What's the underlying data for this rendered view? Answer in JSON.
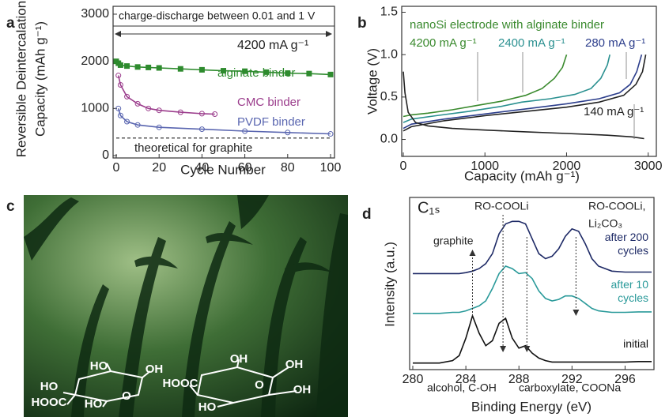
{
  "chart_data": [
    {
      "panel_label": "a",
      "type": "line",
      "x_label": "Cycle Number",
      "y_label": [
        "Reversible Deintercalation",
        "Capacity (mAh g⁻¹)"
      ],
      "annotations": [
        "charge-discharge between 0.01 and 1 V",
        "4200 mA g⁻¹"
      ],
      "xlim": [
        0,
        100
      ],
      "xticks": [
        0,
        20,
        40,
        60,
        80,
        100
      ],
      "ylim": [
        0,
        3100
      ],
      "yticks": [
        0,
        1000,
        2000,
        3000
      ],
      "series": [
        {
          "name": "alginate binder",
          "color": "#2e8b2e",
          "marker": "square",
          "marker_filled": true,
          "x": [
            0,
            1,
            2,
            5,
            10,
            15,
            20,
            30,
            40,
            50,
            60,
            70,
            80,
            90,
            100
          ],
          "values": [
            2000,
            1960,
            1920,
            1900,
            1880,
            1870,
            1860,
            1840,
            1820,
            1800,
            1790,
            1770,
            1750,
            1740,
            1720
          ]
        },
        {
          "name": "CMC binder",
          "color": "#9b3d8c",
          "marker": "circle",
          "marker_filled": false,
          "x": [
            1,
            2,
            5,
            10,
            15,
            20,
            30,
            40,
            46
          ],
          "values": [
            1700,
            1500,
            1250,
            1100,
            1000,
            960,
            920,
            890,
            880
          ]
        },
        {
          "name": "PVDF binder",
          "color": "#5a66b0",
          "marker": "circle",
          "marker_filled": false,
          "x": [
            1,
            2,
            5,
            10,
            20,
            40,
            60,
            80,
            100
          ],
          "values": [
            1000,
            850,
            720,
            650,
            600,
            560,
            520,
            490,
            460
          ]
        },
        {
          "name": "theoretical for graphite",
          "color": "#222222",
          "line_style": "dashed",
          "x": [
            0,
            100
          ],
          "values": [
            372,
            372
          ]
        }
      ]
    },
    {
      "panel_label": "b",
      "type": "line",
      "title": "nanoSi electrode with alginate binder",
      "x_label": "Capacity (mAh g⁻¹)",
      "y_label": [
        "Voltage (V)"
      ],
      "xlim": [
        0,
        3100
      ],
      "xticks": [
        0,
        1000,
        2000,
        3000
      ],
      "ylim": [
        -0.2,
        1.57
      ],
      "yticks": [
        {
          "value": 0,
          "label": "0.0"
        },
        0.5,
        {
          "value": 1,
          "label": "1.0"
        },
        1.5
      ],
      "series": [
        {
          "name": "4200 mA g⁻¹",
          "color": "#3a8a2e",
          "x": [
            0,
            100,
            300,
            600,
            900,
            1200,
            1500,
            1700,
            1850,
            1950,
            2000
          ],
          "values": [
            0.27,
            0.29,
            0.31,
            0.35,
            0.4,
            0.45,
            0.52,
            0.6,
            0.72,
            0.85,
            1.0
          ]
        },
        {
          "name": "2400 mA g⁻¹",
          "color": "#2a9090",
          "x": [
            0,
            100,
            400,
            800,
            1200,
            1450,
            1800,
            2100,
            2300,
            2420,
            2500,
            2530
          ],
          "values": [
            0.2,
            0.24,
            0.28,
            0.33,
            0.39,
            0.44,
            0.48,
            0.53,
            0.6,
            0.72,
            0.88,
            1.0
          ]
        },
        {
          "name": "280 mA g⁻¹",
          "color": "#2c3e8c",
          "x": [
            0,
            100,
            500,
            1000,
            1500,
            2000,
            2400,
            2650,
            2780,
            2860,
            2920
          ],
          "values": [
            0.13,
            0.18,
            0.24,
            0.3,
            0.36,
            0.42,
            0.48,
            0.55,
            0.65,
            0.8,
            1.0
          ]
        },
        {
          "name": "140 mA g⁻¹",
          "color": "#222222",
          "x": [
            0,
            100,
            500,
            1000,
            1500,
            2000,
            2400,
            2700,
            2850,
            2930,
            2970
          ],
          "values": [
            0.1,
            0.15,
            0.22,
            0.28,
            0.33,
            0.38,
            0.44,
            0.52,
            0.65,
            0.8,
            1.0
          ]
        },
        {
          "color": "#222222",
          "x": [
            0,
            20,
            60,
            150,
            300,
            600,
            1000,
            1500,
            2000,
            2500,
            2800,
            2950
          ],
          "values": [
            0.8,
            0.55,
            0.32,
            0.2,
            0.16,
            0.13,
            0.11,
            0.09,
            0.07,
            0.05,
            0.03,
            0.01
          ]
        }
      ]
    },
    {
      "panel_label": "d",
      "type": "line",
      "x_label": "Binding Energy (eV)",
      "y_label": [
        "Intensity (a.u.)"
      ],
      "annotations": [
        "C₁ₛ",
        "graphite",
        "RO-COOLi",
        "RO-COOLi,",
        "Li₂CO₃",
        "alcohol, C-OH",
        "carboxylate, COONa"
      ],
      "arrow_x": [
        284.5,
        286.8,
        288.6,
        292.3
      ],
      "xlim": [
        280,
        298
      ],
      "xticks": [
        280,
        284,
        288,
        292,
        296
      ],
      "ylim": [
        0,
        3.4
      ],
      "x": [
        280,
        281,
        282,
        283,
        283.5,
        284,
        284.5,
        285,
        285.5,
        286,
        286.5,
        287,
        287.5,
        288,
        288.5,
        289,
        289.5,
        290,
        290.5,
        291,
        291.5,
        292,
        292.5,
        293,
        293.5,
        294,
        295,
        296,
        297,
        298
      ],
      "series": [
        {
          "name": "initial",
          "color": "#111111",
          "values": [
            0.1,
            0.1,
            0.1,
            0.15,
            0.25,
            0.6,
            1.05,
            0.7,
            0.45,
            0.55,
            0.9,
            1.0,
            0.6,
            0.4,
            0.45,
            0.3,
            0.2,
            0.15,
            0.12,
            0.12,
            0.12,
            0.12,
            0.12,
            0.12,
            0.12,
            0.12,
            0.12,
            0.12,
            0.13,
            0.13
          ]
        },
        {
          "name": "after 10 cycles",
          "color": "#2a9a9a",
          "values": [
            1.1,
            1.1,
            1.1,
            1.12,
            1.12,
            1.15,
            1.2,
            1.25,
            1.35,
            1.6,
            1.9,
            2.05,
            2.0,
            1.9,
            1.92,
            1.8,
            1.55,
            1.4,
            1.35,
            1.38,
            1.45,
            1.45,
            1.4,
            1.3,
            1.2,
            1.15,
            1.12,
            1.12,
            1.13,
            1.13
          ]
        },
        {
          "name": "after 200 cycles",
          "color": "#1e2a66",
          "values": [
            1.9,
            1.9,
            1.9,
            1.9,
            1.9,
            1.92,
            1.95,
            2.0,
            2.1,
            2.3,
            2.7,
            2.9,
            2.95,
            2.95,
            2.9,
            2.6,
            2.3,
            2.2,
            2.25,
            2.4,
            2.65,
            2.8,
            2.75,
            2.5,
            2.2,
            2.05,
            1.95,
            1.93,
            1.93,
            1.93
          ]
        }
      ]
    }
  ],
  "photo": {
    "panel_label": "c",
    "labels": [
      "HO",
      "OH",
      "HO",
      "HOOC",
      "HO",
      "O",
      "OH",
      "OH",
      "HOOC",
      "O",
      "OH",
      "HO"
    ]
  }
}
